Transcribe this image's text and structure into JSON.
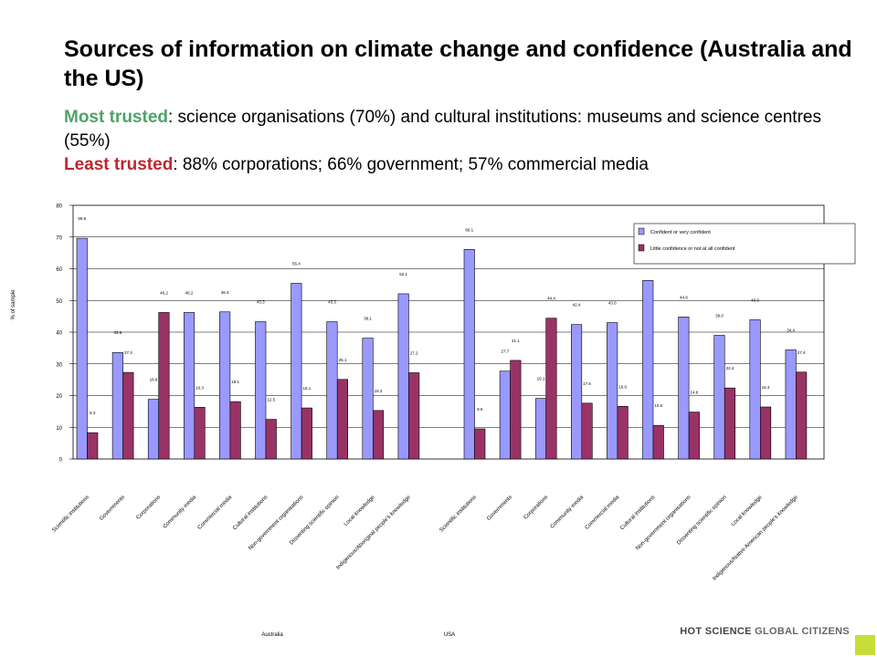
{
  "heading": {
    "title": "Sources of information on climate change and confidence (Australia and the US)",
    "most_label": "Most trusted",
    "most_text": ": science organisations (70%) and cultural institutions: museums and science centres (55%)",
    "least_label": "Least trusted",
    "least_text": ": 88% corporations;  66% government; 57% commercial media"
  },
  "brand": {
    "part1": "HOT SCIENCE",
    "part2": " GLOBAL CITIZENS"
  },
  "colors": {
    "confident": "#9999ff",
    "little": "#993366",
    "green": "#4ea36a",
    "red": "#c0262c",
    "brand_corner": "#c6dd3a"
  },
  "chart_data": {
    "type": "bar",
    "ylabel": "% of sample",
    "ylim": [
      0,
      80
    ],
    "yticks": [
      0,
      10,
      20,
      30,
      40,
      50,
      60,
      70,
      80
    ],
    "legend_position": "top-right",
    "groups": [
      {
        "name": "Australia",
        "categories": [
          "Scientific institutions",
          "Governments",
          "Corporations",
          "Community media",
          "Commercial media",
          "Cultural institutions",
          "Non-government organisations",
          "Dissenting scientific opinion",
          "Local knowledge",
          "Indigenous/Aboriginal people's knowledge"
        ],
        "confident": [
          69.6,
          33.6,
          18.8,
          46.2,
          46.4,
          43.3,
          55.4,
          43.3,
          38.1,
          52.1
        ],
        "little": [
          8.3,
          27.3,
          46.2,
          16.3,
          18.1,
          12.5,
          16.1,
          25.1,
          15.3,
          27.2
        ]
      },
      {
        "name": "USA",
        "categories": [
          "Scientific institutions",
          "Governments",
          "Corporations",
          "Community media",
          "Commercial media",
          "Cultural institutions",
          "Non-government organisations",
          "Dissenting scientific opinion",
          "Local knowledge",
          "Indigenous/Native American people's knowledge"
        ],
        "confident": [
          66.1,
          27.7,
          19.1,
          42.4,
          43.0,
          56.3,
          44.8,
          39.0,
          43.9,
          34.4
        ],
        "little": [
          9.5,
          31.1,
          44.4,
          17.6,
          16.6,
          10.6,
          14.8,
          22.4,
          16.4,
          27.4
        ]
      }
    ],
    "series": [
      {
        "name": "Confident or very confident"
      },
      {
        "name": "Little confidence or not at all confident"
      }
    ]
  }
}
